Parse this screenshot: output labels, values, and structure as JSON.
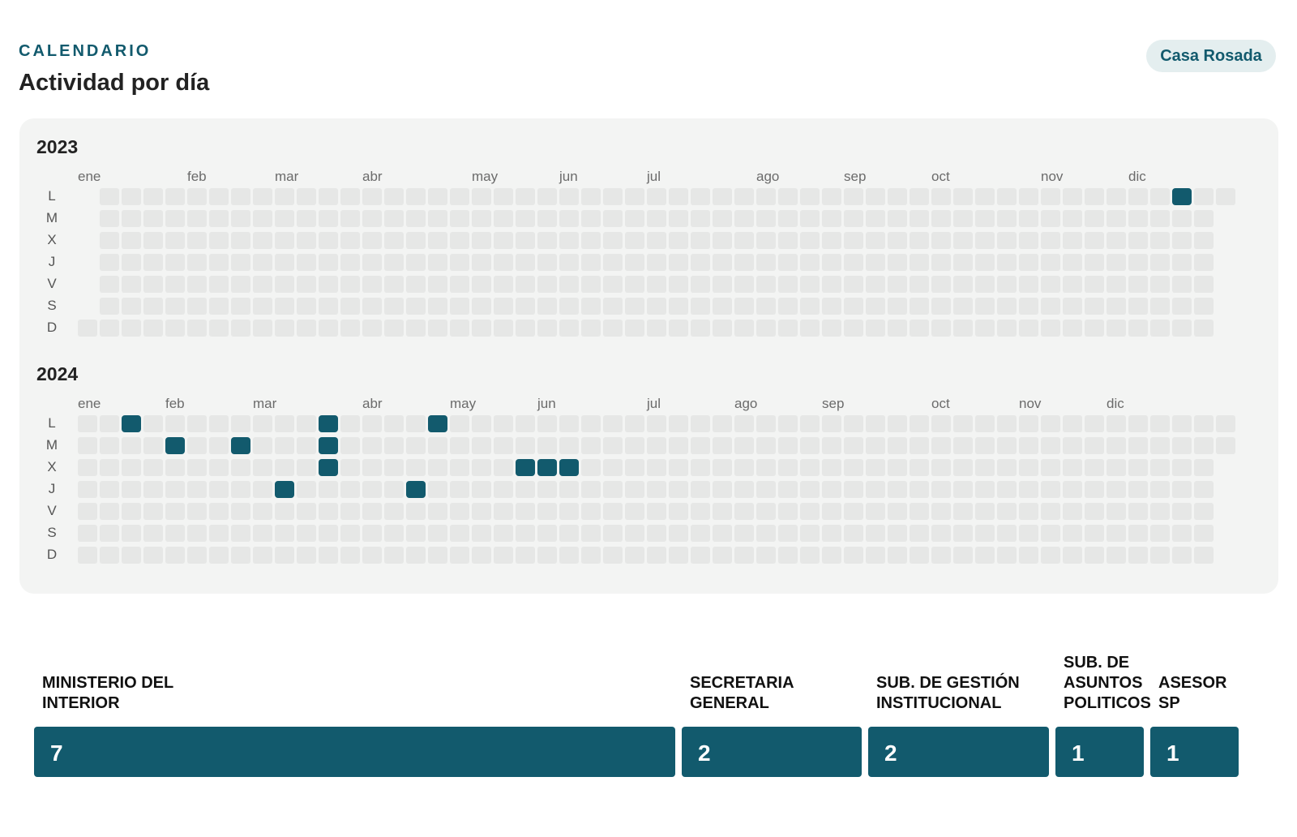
{
  "header": {
    "eyebrow": "CALENDARIO",
    "title": "Actividad por día",
    "badge": "Casa Rosada"
  },
  "calendar": {
    "day_labels": [
      "L",
      "M",
      "X",
      "J",
      "V",
      "S",
      "D"
    ],
    "colors": {
      "empty": "#e6e7e6",
      "active": "#125a6d",
      "panel": "#f3f4f3"
    },
    "years": [
      {
        "year": "2023",
        "months": [
          {
            "label": "ene",
            "week": 0
          },
          {
            "label": "feb",
            "week": 5
          },
          {
            "label": "mar",
            "week": 9
          },
          {
            "label": "abr",
            "week": 13
          },
          {
            "label": "may",
            "week": 18
          },
          {
            "label": "jun",
            "week": 22
          },
          {
            "label": "jul",
            "week": 26
          },
          {
            "label": "ago",
            "week": 31
          },
          {
            "label": "sep",
            "week": 35
          },
          {
            "label": "oct",
            "week": 39
          },
          {
            "label": "nov",
            "week": 44
          },
          {
            "label": "dic",
            "week": 48
          }
        ],
        "weeks": 53,
        "first_weekday": 6,
        "last_weekday": 0,
        "active": [
          {
            "week": 50,
            "day": 0
          }
        ]
      },
      {
        "year": "2024",
        "months": [
          {
            "label": "ene",
            "week": 0
          },
          {
            "label": "feb",
            "week": 4
          },
          {
            "label": "mar",
            "week": 8
          },
          {
            "label": "abr",
            "week": 13
          },
          {
            "label": "may",
            "week": 17
          },
          {
            "label": "jun",
            "week": 21
          },
          {
            "label": "jul",
            "week": 26
          },
          {
            "label": "ago",
            "week": 30
          },
          {
            "label": "sep",
            "week": 34
          },
          {
            "label": "oct",
            "week": 39
          },
          {
            "label": "nov",
            "week": 43
          },
          {
            "label": "dic",
            "week": 47
          }
        ],
        "weeks": 53,
        "first_weekday": 0,
        "last_weekday": 1,
        "active": [
          {
            "week": 2,
            "day": 0
          },
          {
            "week": 4,
            "day": 1
          },
          {
            "week": 7,
            "day": 1
          },
          {
            "week": 9,
            "day": 3
          },
          {
            "week": 11,
            "day": 0
          },
          {
            "week": 11,
            "day": 1
          },
          {
            "week": 11,
            "day": 2
          },
          {
            "week": 15,
            "day": 3
          },
          {
            "week": 16,
            "day": 0
          },
          {
            "week": 20,
            "day": 2
          },
          {
            "week": 21,
            "day": 2
          },
          {
            "week": 22,
            "day": 2
          }
        ]
      }
    ]
  },
  "departments": [
    {
      "label": "MINISTERIO DEL INTERIOR",
      "value": 7
    },
    {
      "label": "SECRETARIA GENERAL",
      "value": 2
    },
    {
      "label": "SUB. DE GESTIÓN INSTITUCIONAL",
      "value": 2
    },
    {
      "label": "SUB. DE ASUNTOS POLITICOS",
      "value": 1
    },
    {
      "label": "ASESOR SP",
      "value": 1
    }
  ]
}
